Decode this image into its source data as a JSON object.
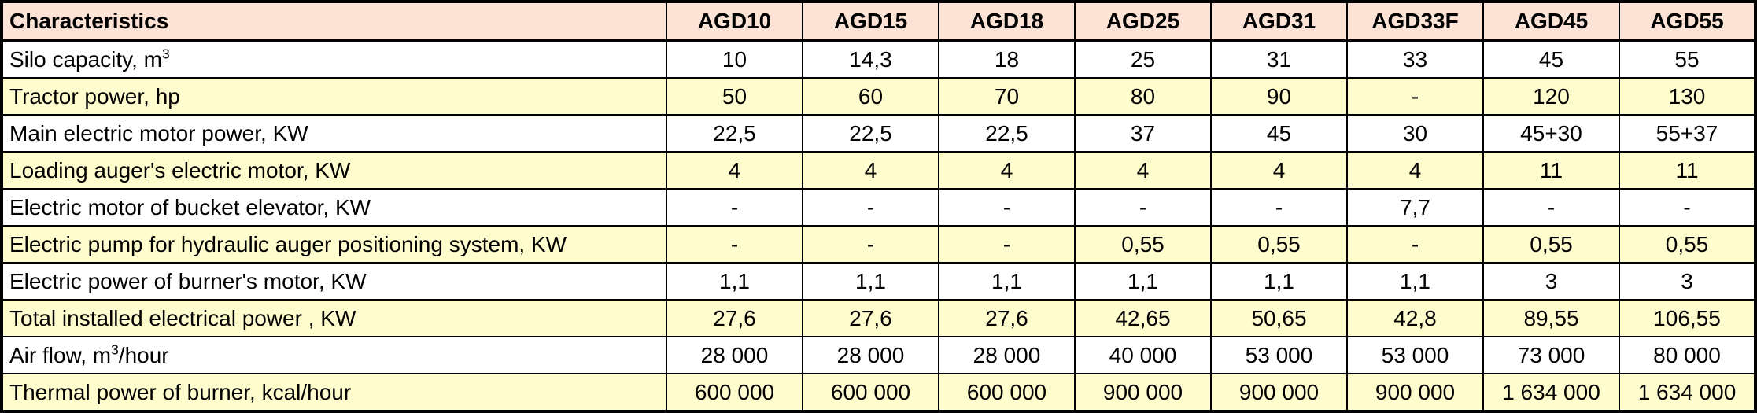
{
  "table": {
    "colors": {
      "header_bg": "#fce3d6",
      "row_highlight_bg": "#fffccd",
      "row_bg": "#ffffff",
      "border": "#000000",
      "text": "#000000"
    },
    "header": {
      "label": "Characteristics",
      "columns": [
        "AGD10",
        "AGD15",
        "AGD18",
        "AGD25",
        "AGD31",
        "AGD33F",
        "AGD45",
        "AGD55"
      ]
    },
    "rows": [
      {
        "id": "silo-capacity",
        "label_parts": [
          {
            "t": "Silo capacity, m"
          },
          {
            "t": "3",
            "sup": true
          }
        ],
        "values": [
          "10",
          "14,3",
          "18",
          "25",
          "31",
          "33",
          "45",
          "55"
        ],
        "shaded": false
      },
      {
        "id": "tractor-power",
        "label_parts": [
          {
            "t": "Tractor power, hp"
          }
        ],
        "values": [
          "50",
          "60",
          "70",
          "80",
          "90",
          "-",
          "120",
          "130"
        ],
        "shaded": true
      },
      {
        "id": "main-electric-motor-power",
        "label_parts": [
          {
            "t": "Main electric motor power, KW"
          }
        ],
        "values": [
          "22,5",
          "22,5",
          "22,5",
          "37",
          "45",
          "30",
          "45+30",
          "55+37"
        ],
        "shaded": false
      },
      {
        "id": "loading-auger-electric-motor",
        "label_parts": [
          {
            "t": "Loading auger's electric motor, KW"
          }
        ],
        "values": [
          "4",
          "4",
          "4",
          "4",
          "4",
          "4",
          "11",
          "11"
        ],
        "shaded": true
      },
      {
        "id": "bucket-elevator-motor",
        "label_parts": [
          {
            "t": "Electric motor of bucket elevator, KW"
          }
        ],
        "values": [
          "-",
          "-",
          "-",
          "-",
          "-",
          "7,7",
          "-",
          "-"
        ],
        "shaded": false
      },
      {
        "id": "hydraulic-auger-pump",
        "label_parts": [
          {
            "t": "Electric pump for hydraulic auger positioning system, KW"
          }
        ],
        "values": [
          "-",
          "-",
          "-",
          "0,55",
          "0,55",
          "-",
          "0,55",
          "0,55"
        ],
        "shaded": true
      },
      {
        "id": "burner-motor-power",
        "label_parts": [
          {
            "t": "Electric power of burner's motor, KW"
          }
        ],
        "values": [
          "1,1",
          "1,1",
          "1,1",
          "1,1",
          "1,1",
          "1,1",
          "3",
          "3"
        ],
        "shaded": false
      },
      {
        "id": "total-installed-power",
        "label_parts": [
          {
            "t": "Total installed electrical power , KW"
          }
        ],
        "values": [
          "27,6",
          "27,6",
          "27,6",
          "42,65",
          "50,65",
          "42,8",
          "89,55",
          "106,55"
        ],
        "shaded": true
      },
      {
        "id": "air-flow",
        "label_parts": [
          {
            "t": "Air flow, m"
          },
          {
            "t": "3",
            "sup": true
          },
          {
            "t": "/hour"
          }
        ],
        "values": [
          "28 000",
          "28 000",
          "28 000",
          "40 000",
          "53 000",
          "53 000",
          "73 000",
          "80 000"
        ],
        "shaded": false
      },
      {
        "id": "thermal-power-burner",
        "label_parts": [
          {
            "t": "Thermal power of burner, kcal/hour"
          }
        ],
        "values": [
          "600 000",
          "600 000",
          "600 000",
          "900 000",
          "900 000",
          "900 000",
          "1 634 000",
          "1 634 000"
        ],
        "shaded": true
      }
    ]
  }
}
